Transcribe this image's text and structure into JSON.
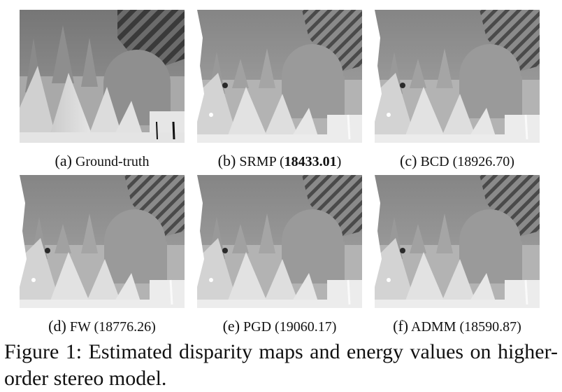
{
  "figure": {
    "caption_prefix": "Figure 1:",
    "caption_text": "Estimated disparity maps and energy values on higher-order stereo model."
  },
  "panels": [
    {
      "label": "(a)",
      "method": "Ground-truth",
      "energy": ""
    },
    {
      "label": "(b)",
      "method": "SRMP",
      "energy": "18433.01",
      "energy_bold": true
    },
    {
      "label": "(c)",
      "method": "BCD",
      "energy": "18926.70"
    },
    {
      "label": "(d)",
      "method": "FW",
      "energy": "18776.26"
    },
    {
      "label": "(e)",
      "method": "PGD",
      "energy": "19060.17"
    },
    {
      "label": "(f)",
      "method": "ADMM",
      "energy": "18590.87"
    }
  ]
}
